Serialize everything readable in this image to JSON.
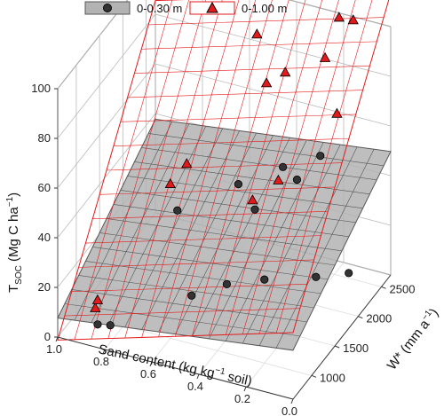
{
  "chart_data": {
    "type": "scatter",
    "plot_style": "3d-scatter-with-fitted-planes",
    "axes": {
      "x": {
        "label_main": "Sand content (kg kg",
        "label_sup": "−1",
        "label_end": " soil)",
        "range": [
          0.0,
          1.0
        ],
        "tick_labels": [
          "1.0",
          "0.8",
          "0.6",
          "0.4",
          "0.2",
          "0.0"
        ]
      },
      "y": {
        "label_main": "W* (mm a",
        "label_sup": "−1",
        "label_end": ")",
        "range": [
          600,
          2700
        ],
        "tick_labels": [
          "1000",
          "1500",
          "2000",
          "2500"
        ]
      },
      "z": {
        "label_main": "T",
        "label_sub": "SOC",
        "label_mid": " (Mg C ha",
        "label_sup": "−1",
        "label_end": ")",
        "range": [
          0,
          100
        ],
        "tick_labels": [
          "0",
          "20",
          "40",
          "60",
          "80",
          "100"
        ]
      }
    },
    "grid": true,
    "legend_position": "top",
    "series": [
      {
        "name": "0-0.30 m",
        "marker": "circle",
        "marker_color": "#333333",
        "plane_color": "#b3b3b3",
        "plane_edge_color": "#555555",
        "plane": {
          "intercept": 11.1,
          "slope_sand": -12,
          "slope_w": 0.0143
        },
        "points": [
          {
            "sand": 0.86,
            "w": 750,
            "z": 5
          },
          {
            "sand": 0.82,
            "w": 820,
            "z": 4
          },
          {
            "sand": 0.52,
            "w": 1050,
            "z": 18
          },
          {
            "sand": 0.62,
            "w": 1250,
            "z": 45
          },
          {
            "sand": 0.4,
            "w": 1200,
            "z": 22
          },
          {
            "sand": 0.43,
            "w": 1600,
            "z": 52
          },
          {
            "sand": 0.35,
            "w": 1550,
            "z": 45
          },
          {
            "sand": 0.26,
            "w": 1300,
            "z": 25
          },
          {
            "sand": 0.3,
            "w": 1900,
            "z": 55
          },
          {
            "sand": 0.25,
            "w": 1950,
            "z": 50
          },
          {
            "sand": 0.12,
            "w": 1700,
            "z": 20
          },
          {
            "sand": 0.22,
            "w": 2300,
            "z": 52
          },
          {
            "sand": 0.05,
            "w": 2050,
            "z": 15
          }
        ]
      },
      {
        "name": "0-1.00 m",
        "marker": "triangle",
        "marker_color": "#e31a1c",
        "plane_color": "none",
        "plane_edge_color": "#e31a1c",
        "plane": {
          "intercept": 2.0,
          "slope_sand": -28,
          "slope_w": 0.0413
        },
        "points": [
          {
            "sand": 0.88,
            "w": 800,
            "z": 10
          },
          {
            "sand": 0.88,
            "w": 850,
            "z": 12
          },
          {
            "sand": 0.6,
            "w": 1350,
            "z": 62
          },
          {
            "sand": 0.65,
            "w": 1250,
            "z": 55
          },
          {
            "sand": 0.35,
            "w": 1800,
            "z": 90
          },
          {
            "sand": 0.3,
            "w": 1950,
            "z": 92
          },
          {
            "sand": 0.18,
            "w": 2500,
            "z": 104
          },
          {
            "sand": 0.13,
            "w": 2550,
            "z": 103
          },
          {
            "sand": 0.2,
            "w": 2300,
            "z": 92
          },
          {
            "sand": 0.1,
            "w": 2050,
            "z": 78
          },
          {
            "sand": 0.45,
            "w": 2100,
            "z": 100
          },
          {
            "sand": 0.28,
            "w": 1700,
            "z": 55
          },
          {
            "sand": 0.35,
            "w": 1500,
            "z": 50
          }
        ]
      }
    ]
  }
}
